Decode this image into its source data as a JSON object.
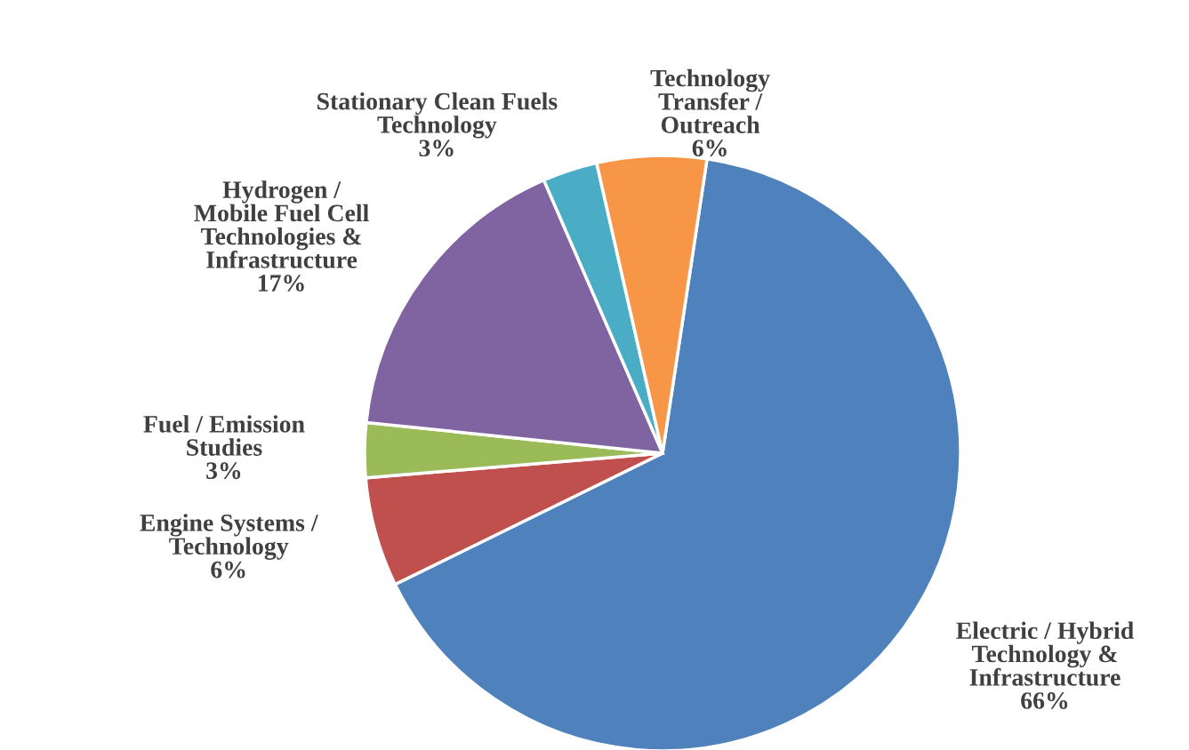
{
  "chart_data": {
    "type": "pie",
    "categories": [
      "Electric / Hybrid\nTechnology &\nInfrastructure",
      "Engine Systems /\nTechnology",
      "Fuel / Emission\nStudies",
      "Hydrogen /\nMobile Fuel Cell\nTechnologies &\nInfrastructure",
      "Stationary Clean Fuels\nTechnology",
      "Technology\nTransfer /\nOutreach"
    ],
    "values": [
      66,
      6,
      3,
      17,
      3,
      6
    ],
    "colors": [
      "#4f81bd",
      "#c0504d",
      "#9bbb59",
      "#8064a2",
      "#4bacc6",
      "#f79646"
    ],
    "value_labels": [
      "66%",
      "6%",
      "3%",
      "17%",
      "3%",
      "6%"
    ]
  }
}
